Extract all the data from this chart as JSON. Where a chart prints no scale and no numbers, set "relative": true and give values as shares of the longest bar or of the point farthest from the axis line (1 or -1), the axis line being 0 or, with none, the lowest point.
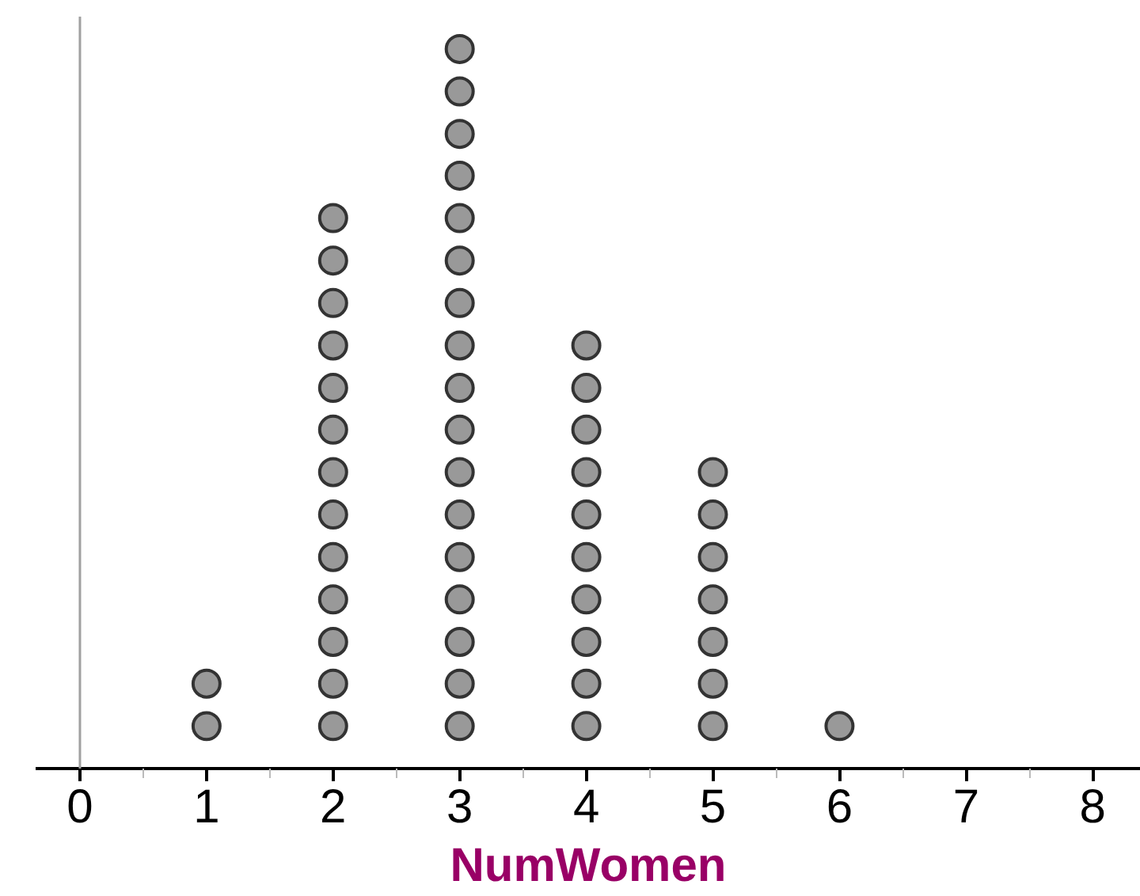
{
  "chart_data": {
    "type": "scatter",
    "xlabel": "NumWomen",
    "marker": "circle",
    "grid": false,
    "tick_labels": "x",
    "relative": true,
    "x": [
      1,
      1,
      2,
      2,
      2,
      2,
      2,
      2,
      2,
      2,
      2,
      2,
      2,
      2,
      2,
      3,
      3,
      3,
      3,
      3,
      3,
      3,
      3,
      3,
      3,
      3,
      3,
      3,
      3,
      3,
      3,
      3,
      4,
      4,
      4,
      4,
      4,
      4,
      4,
      4,
      4,
      4,
      5,
      5,
      5,
      5,
      5,
      5,
      5,
      6
    ],
    "series": [
      {
        "color": "#999999",
        "values": [
          0.059,
          0.118,
          0.059,
          0.118,
          0.176,
          0.235,
          0.294,
          0.353,
          0.412,
          0.471,
          0.529,
          0.588,
          0.647,
          0.706,
          0.765,
          0.059,
          0.118,
          0.176,
          0.235,
          0.294,
          0.353,
          0.412,
          0.471,
          0.529,
          0.588,
          0.647,
          0.706,
          0.765,
          0.824,
          0.882,
          0.941,
          1,
          0.059,
          0.118,
          0.176,
          0.235,
          0.294,
          0.353,
          0.412,
          0.471,
          0.529,
          0.588,
          0.059,
          0.118,
          0.176,
          0.235,
          0.294,
          0.353,
          0.412,
          0.059
        ]
      }
    ],
    "xlim": [
      -0.35,
      8.38
    ],
    "xticks": [
      0,
      {
        "value": 0.5,
        "label": null
      },
      1,
      {
        "value": 1.5,
        "label": null
      },
      2,
      {
        "value": 2.5,
        "label": null
      },
      3,
      {
        "value": 3.5,
        "label": null
      },
      4,
      {
        "value": 4.5,
        "label": null
      },
      5,
      {
        "value": 5.5,
        "label": null
      },
      6,
      {
        "value": 6.5,
        "label": null
      },
      7,
      {
        "value": 7.5,
        "label": null
      },
      8
    ],
    "ref_lines": [
      {
        "axis": "x",
        "value": 0,
        "label": null,
        "color": "#a0a0a0"
      }
    ]
  }
}
